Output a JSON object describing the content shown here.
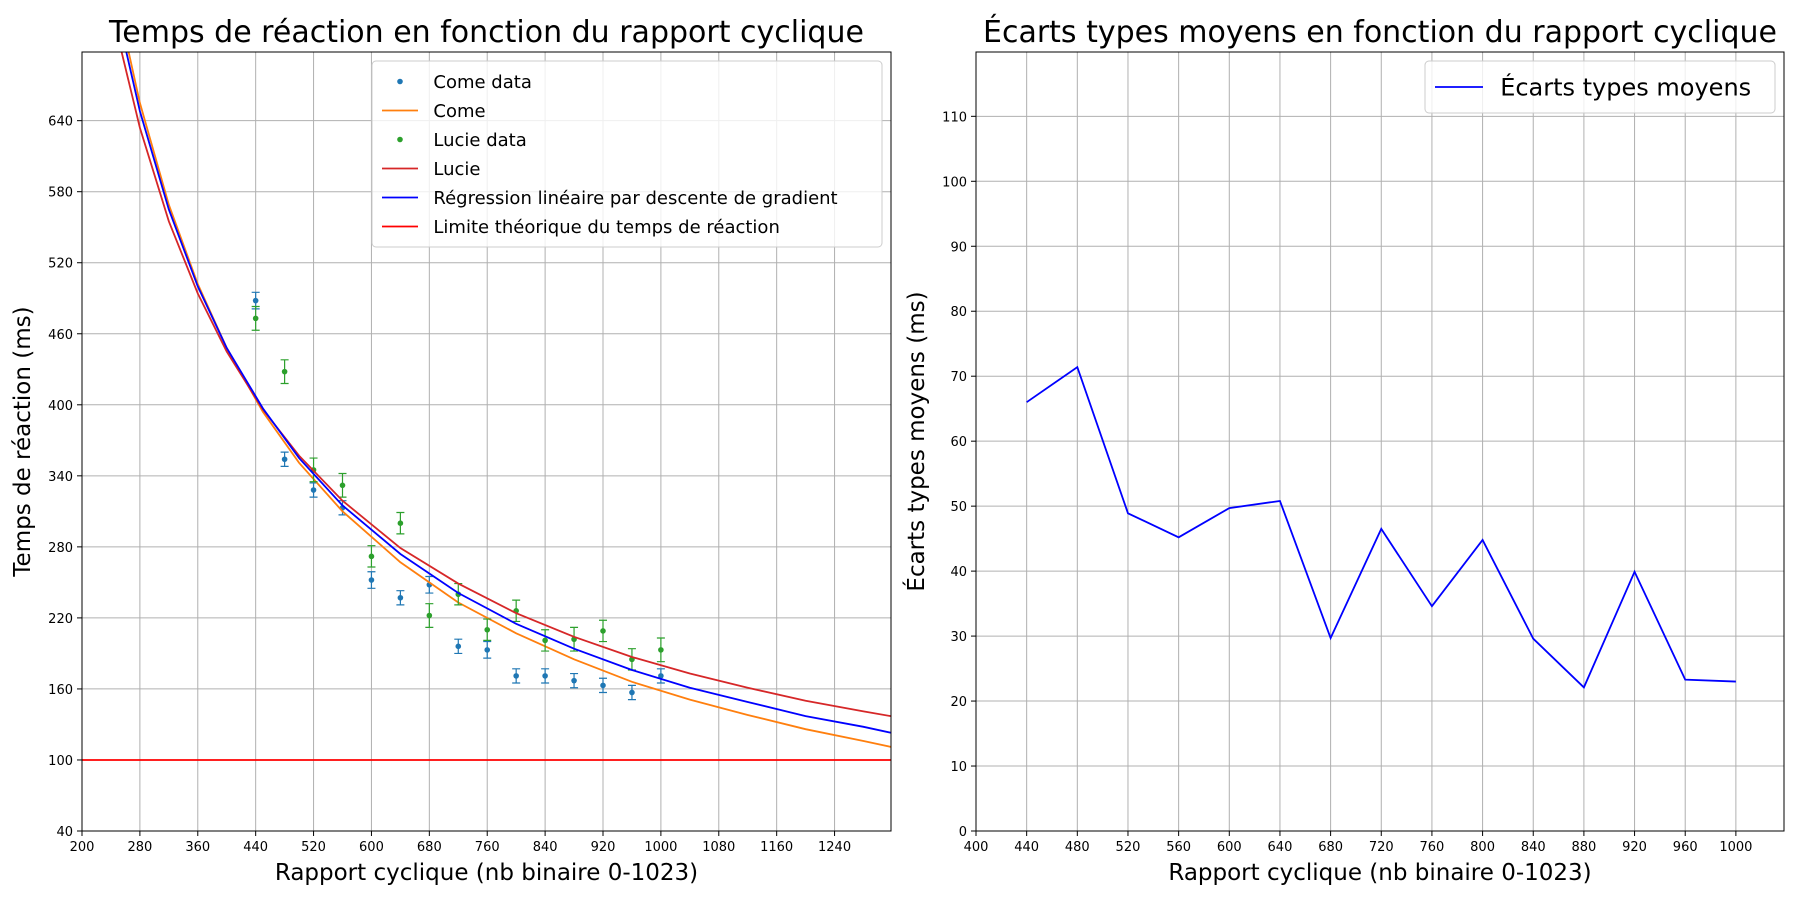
{
  "chart_data": [
    {
      "type": "line",
      "title": "Temps de réaction en fonction du rapport cyclique",
      "xlabel": "Rapport cyclique (nb binaire 0-1023)",
      "ylabel": "Temps de réaction (ms)",
      "xlim": [
        200,
        1318
      ],
      "ylim": [
        40,
        698
      ],
      "xticks": [
        200,
        280,
        360,
        440,
        520,
        600,
        680,
        760,
        840,
        920,
        1000,
        1080,
        1160,
        1240
      ],
      "yticks": [
        40,
        100,
        160,
        220,
        280,
        340,
        400,
        460,
        520,
        580,
        640
      ],
      "grid": true,
      "legend": "upper right",
      "series": [
        {
          "name": "Come data",
          "color": "#1f77b4",
          "mode": "markers",
          "x": [
            440,
            480,
            520,
            560,
            600,
            640,
            680,
            720,
            760,
            800,
            840,
            880,
            920,
            960,
            1000
          ],
          "values": [
            488,
            354,
            328,
            313,
            252,
            237,
            248,
            196,
            193,
            171,
            171,
            167,
            163,
            157,
            171
          ],
          "errors": [
            7,
            6,
            6,
            6,
            7,
            6,
            7,
            6,
            7,
            6,
            6,
            6,
            6,
            6,
            6
          ]
        },
        {
          "name": "Come",
          "color": "#ff7f0e",
          "mode": "line",
          "x": [
            250,
            280,
            320,
            360,
            400,
            450,
            500,
            560,
            640,
            720,
            800,
            880,
            960,
            1040,
            1120,
            1200,
            1280,
            1318
          ],
          "values": [
            738,
            655,
            569,
            502,
            448,
            394,
            351,
            310,
            267,
            233,
            207,
            185,
            166,
            151,
            138,
            126,
            116,
            111
          ]
        },
        {
          "name": "Lucie data",
          "color": "#2ca02c",
          "mode": "markers",
          "x": [
            440,
            480,
            520,
            560,
            600,
            640,
            680,
            720,
            760,
            800,
            840,
            880,
            920,
            960,
            1000
          ],
          "values": [
            473,
            428,
            345,
            332,
            272,
            300,
            222,
            240,
            210,
            226,
            201,
            202,
            209,
            185,
            193
          ],
          "errors": [
            10,
            10,
            10,
            10,
            9,
            9,
            10,
            9,
            9,
            9,
            9,
            10,
            9,
            9,
            10
          ]
        },
        {
          "name": "Lucie",
          "color": "#d62728",
          "mode": "line",
          "x": [
            250,
            280,
            320,
            360,
            400,
            450,
            500,
            560,
            640,
            720,
            800,
            880,
            960,
            1040,
            1120,
            1200,
            1280,
            1318
          ],
          "values": [
            710,
            634,
            555,
            494,
            445,
            396,
            357,
            319,
            279,
            249,
            224,
            204,
            187,
            173,
            161,
            150,
            141,
            137
          ]
        },
        {
          "name": "Régression linéaire par descente de gradient",
          "color": "#0000ff",
          "mode": "line",
          "x": [
            250,
            280,
            320,
            360,
            400,
            450,
            500,
            560,
            640,
            720,
            800,
            880,
            960,
            1040,
            1120,
            1200,
            1280,
            1318
          ],
          "values": [
            728,
            648,
            565,
            500,
            448,
            397,
            355,
            315,
            274,
            241,
            215,
            194,
            176,
            161,
            149,
            137,
            128,
            123
          ]
        },
        {
          "name": "Limite théorique du temps de réaction",
          "color": "#ff0000",
          "mode": "line",
          "x": [
            200,
            1318
          ],
          "values": [
            100,
            100
          ]
        }
      ]
    },
    {
      "type": "line",
      "title": "Écarts types moyens en fonction du rapport cyclique",
      "xlabel": "Rapport cyclique (nb binaire 0-1023)",
      "ylabel": "Écarts types moyens (ms)",
      "xlim": [
        400,
        1038
      ],
      "ylim": [
        0,
        119.9
      ],
      "xticks": [
        400,
        440,
        480,
        520,
        560,
        600,
        640,
        680,
        720,
        760,
        800,
        840,
        880,
        920,
        960,
        1000
      ],
      "yticks": [
        0,
        10,
        20,
        30,
        40,
        50,
        60,
        70,
        80,
        90,
        100,
        110
      ],
      "grid": true,
      "legend": "upper right",
      "series": [
        {
          "name": "Écarts types moyens",
          "color": "#0000ff",
          "mode": "line",
          "x": [
            440,
            480,
            520,
            560,
            600,
            640,
            680,
            720,
            760,
            800,
            840,
            880,
            920,
            960,
            1000
          ],
          "values": [
            66,
            71.4,
            48.9,
            45.2,
            49.7,
            50.8,
            29.7,
            46.5,
            34.6,
            44.8,
            29.6,
            22.1,
            39.9,
            23.3,
            23.0
          ]
        }
      ]
    }
  ]
}
